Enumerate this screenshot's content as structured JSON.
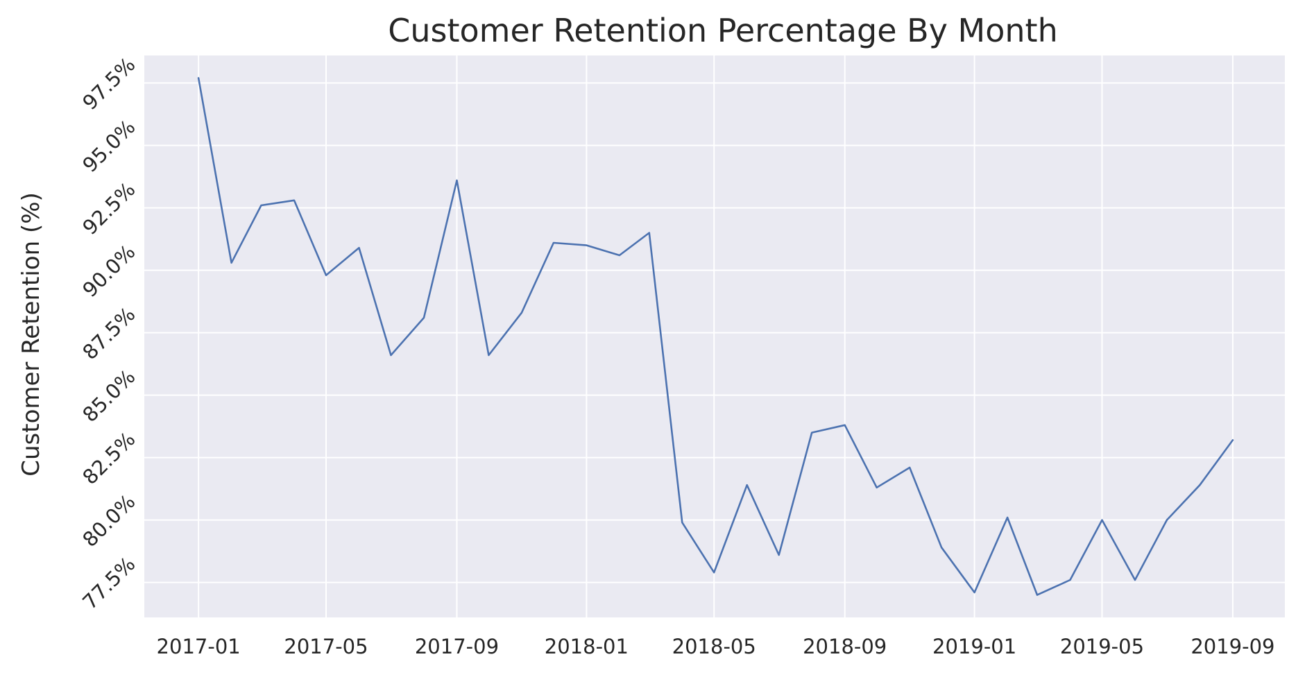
{
  "chart_data": {
    "type": "line",
    "title": "Customer Retention Percentage By Month",
    "xlabel": "",
    "ylabel": "Customer Retention (%)",
    "x": [
      "2017-01",
      "2017-02",
      "2017-03",
      "2017-04",
      "2017-05",
      "2017-06",
      "2017-07",
      "2017-08",
      "2017-09",
      "2017-10",
      "2017-11",
      "2017-12",
      "2018-01",
      "2018-02",
      "2018-03",
      "2018-04",
      "2018-05",
      "2018-06",
      "2018-07",
      "2018-08",
      "2018-09",
      "2018-10",
      "2018-11",
      "2018-12",
      "2019-01",
      "2019-02",
      "2019-03",
      "2019-04",
      "2019-05",
      "2019-06",
      "2019-07",
      "2019-08",
      "2019-09"
    ],
    "series": [
      {
        "values": [
          97.7,
          90.3,
          92.6,
          92.8,
          89.8,
          90.9,
          86.6,
          88.1,
          93.6,
          86.6,
          88.3,
          91.1,
          91.0,
          90.6,
          91.5,
          79.9,
          77.9,
          81.4,
          78.6,
          83.5,
          83.8,
          81.3,
          82.1,
          78.9,
          77.1,
          80.1,
          77.0,
          77.6,
          80.0,
          77.6,
          80.0,
          81.4,
          83.2
        ]
      }
    ],
    "xticks": [
      "2017-01",
      "2017-05",
      "2017-09",
      "2018-01",
      "2018-05",
      "2018-09",
      "2019-01",
      "2019-05",
      "2019-09"
    ],
    "yticks": [
      77.5,
      80.0,
      82.5,
      85.0,
      87.5,
      90.0,
      92.5,
      95.0,
      97.5
    ],
    "ytick_labels": [
      "77.5%",
      "80.0%",
      "82.5%",
      "85.0%",
      "87.5%",
      "90.0%",
      "92.5%",
      "95.0%",
      "97.5%"
    ],
    "ylim": [
      76.1,
      98.6
    ],
    "xlim": [
      "2016-11-11",
      "2019-10-20"
    ],
    "grid": true,
    "legend": "none",
    "colors": {
      "line": "#4c72b0",
      "plot_background": "#eaeaf2",
      "grid": "#ffffff",
      "text": "#262626"
    }
  }
}
